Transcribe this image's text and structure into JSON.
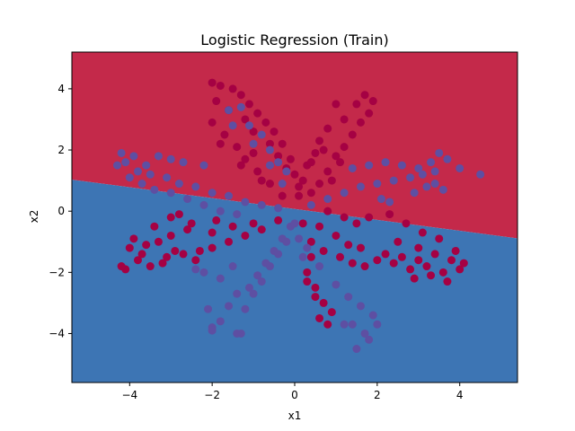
{
  "chart_data": {
    "type": "scatter",
    "title": "Logistic Regression (Train)",
    "xlabel": "x1",
    "ylabel": "x2",
    "xlim": [
      -5.4,
      5.4
    ],
    "ylim": [
      -5.6,
      5.2
    ],
    "xticks": [
      -4,
      -2,
      0,
      2,
      4
    ],
    "yticks": [
      -4,
      -2,
      0,
      2,
      4
    ],
    "xtick_labels": [
      "−4",
      "−2",
      "0",
      "2",
      "4"
    ],
    "ytick_labels": [
      "−4",
      "−2",
      "0",
      "2",
      "4"
    ],
    "grid": false,
    "legend": "none",
    "decision_boundary": {
      "line": [
        [
          -5.4,
          1.03
        ],
        [
          5.4,
          -0.89
        ]
      ],
      "above_color": "#c4294a",
      "below_color": "#3d75b4"
    },
    "series": [
      {
        "color": "#a50143",
        "points": [
          [
            -2.0,
            4.2
          ],
          [
            -1.8,
            4.1
          ],
          [
            -1.5,
            4.0
          ],
          [
            -1.3,
            3.8
          ],
          [
            -1.1,
            3.5
          ],
          [
            -0.9,
            3.2
          ],
          [
            -0.7,
            2.9
          ],
          [
            -0.5,
            2.6
          ],
          [
            -0.3,
            2.2
          ],
          [
            -0.1,
            1.7
          ],
          [
            0.0,
            1.2
          ],
          [
            0.1,
            0.8
          ],
          [
            -1.9,
            3.6
          ],
          [
            -1.6,
            3.3
          ],
          [
            -1.2,
            3.0
          ],
          [
            -1.0,
            2.6
          ],
          [
            -0.6,
            2.2
          ],
          [
            -0.4,
            1.8
          ],
          [
            -0.2,
            1.4
          ],
          [
            -2.0,
            2.9
          ],
          [
            -1.7,
            2.5
          ],
          [
            -1.4,
            2.1
          ],
          [
            -1.2,
            1.7
          ],
          [
            -0.9,
            1.3
          ],
          [
            -0.6,
            0.9
          ],
          [
            -0.3,
            0.5
          ],
          [
            -1.8,
            2.2
          ],
          [
            -1.3,
            1.5
          ],
          [
            -0.8,
            1.0
          ],
          [
            -1.0,
            1.9
          ],
          [
            1.0,
            3.5
          ],
          [
            1.2,
            3.0
          ],
          [
            0.8,
            2.7
          ],
          [
            0.6,
            2.3
          ],
          [
            0.5,
            1.9
          ],
          [
            0.3,
            1.5
          ],
          [
            0.2,
            1.0
          ],
          [
            0.1,
            0.5
          ],
          [
            0.7,
            2.0
          ],
          [
            0.4,
            1.6
          ],
          [
            1.7,
            3.8
          ],
          [
            1.5,
            3.5
          ],
          [
            1.9,
            3.6
          ],
          [
            1.8,
            3.2
          ],
          [
            1.6,
            2.9
          ],
          [
            1.4,
            2.5
          ],
          [
            1.2,
            2.1
          ],
          [
            1.0,
            1.8
          ],
          [
            0.8,
            1.3
          ],
          [
            0.6,
            0.9
          ],
          [
            0.4,
            0.6
          ],
          [
            1.1,
            1.6
          ],
          [
            0.9,
            1.0
          ],
          [
            -4.1,
            -1.9
          ],
          [
            -3.8,
            -1.6
          ],
          [
            -3.5,
            -1.8
          ],
          [
            -3.1,
            -1.5
          ],
          [
            -2.7,
            -1.4
          ],
          [
            -2.3,
            -1.3
          ],
          [
            -2.0,
            -1.2
          ],
          [
            -1.6,
            -1.0
          ],
          [
            -1.2,
            -0.8
          ],
          [
            -0.8,
            -0.6
          ],
          [
            -0.4,
            -0.3
          ],
          [
            -4.0,
            -1.2
          ],
          [
            -3.6,
            -1.1
          ],
          [
            -3.3,
            -1.0
          ],
          [
            -3.0,
            -0.8
          ],
          [
            -2.6,
            -0.6
          ],
          [
            -2.0,
            -0.7
          ],
          [
            -1.5,
            -0.5
          ],
          [
            -1.0,
            -0.4
          ],
          [
            -3.9,
            -0.9
          ],
          [
            -3.4,
            -0.5
          ],
          [
            -3.0,
            -0.2
          ],
          [
            -2.5,
            -0.4
          ],
          [
            -1.9,
            -0.3
          ],
          [
            -3.2,
            -1.7
          ],
          [
            -2.9,
            -1.3
          ],
          [
            -3.7,
            -1.4
          ],
          [
            -4.2,
            -1.8
          ],
          [
            -2.4,
            -1.6
          ],
          [
            -2.8,
            -0.1
          ],
          [
            0.4,
            -1.0
          ],
          [
            0.7,
            -1.3
          ],
          [
            1.1,
            -1.5
          ],
          [
            1.4,
            -1.7
          ],
          [
            1.7,
            -1.8
          ],
          [
            2.0,
            -1.6
          ],
          [
            2.4,
            -1.7
          ],
          [
            2.8,
            -1.9
          ],
          [
            3.2,
            -1.8
          ],
          [
            3.6,
            -2.0
          ],
          [
            4.0,
            -1.9
          ],
          [
            0.6,
            -0.5
          ],
          [
            1.0,
            -0.8
          ],
          [
            1.3,
            -1.1
          ],
          [
            1.6,
            -1.2
          ],
          [
            2.2,
            -1.4
          ],
          [
            2.6,
            -1.5
          ],
          [
            3.0,
            -1.6
          ],
          [
            3.4,
            -1.4
          ],
          [
            3.8,
            -1.6
          ],
          [
            4.1,
            -1.7
          ],
          [
            3.9,
            -1.3
          ],
          [
            2.3,
            -0.1
          ],
          [
            2.7,
            -0.4
          ],
          [
            3.1,
            -0.7
          ],
          [
            3.5,
            -0.9
          ],
          [
            3.0,
            -1.2
          ],
          [
            2.5,
            -1.0
          ],
          [
            1.8,
            -0.2
          ],
          [
            1.5,
            -0.4
          ],
          [
            1.2,
            -0.2
          ],
          [
            0.8,
            0.0
          ],
          [
            3.3,
            -2.1
          ],
          [
            3.7,
            -2.3
          ],
          [
            2.9,
            -2.2
          ],
          [
            0.2,
            -0.4
          ],
          [
            0.4,
            -1.5
          ],
          [
            0.3,
            -2.0
          ],
          [
            0.5,
            -2.5
          ],
          [
            0.7,
            -3.0
          ],
          [
            0.9,
            -3.3
          ],
          [
            0.6,
            -3.5
          ],
          [
            0.8,
            -3.7
          ],
          [
            0.5,
            -2.8
          ],
          [
            0.3,
            -2.3
          ]
        ]
      },
      {
        "color": "#5e4fa2",
        "points": [
          [
            -4.3,
            1.5
          ],
          [
            -4.2,
            1.9
          ],
          [
            -3.9,
            1.8
          ],
          [
            -3.6,
            1.5
          ],
          [
            -3.5,
            1.2
          ],
          [
            -3.1,
            1.1
          ],
          [
            -2.8,
            0.9
          ],
          [
            -2.4,
            0.8
          ],
          [
            -2.0,
            0.6
          ],
          [
            -1.6,
            0.5
          ],
          [
            -1.2,
            0.3
          ],
          [
            -0.8,
            0.2
          ],
          [
            -0.4,
            0.1
          ],
          [
            -4.0,
            1.1
          ],
          [
            -3.7,
            0.9
          ],
          [
            -3.4,
            0.7
          ],
          [
            -3.0,
            0.6
          ],
          [
            -2.6,
            0.4
          ],
          [
            -2.2,
            0.2
          ],
          [
            -1.8,
            0.0
          ],
          [
            -1.4,
            -0.1
          ],
          [
            -3.3,
            1.8
          ],
          [
            -3.0,
            1.7
          ],
          [
            -2.7,
            1.6
          ],
          [
            -2.2,
            1.5
          ],
          [
            -3.8,
            1.3
          ],
          [
            -4.1,
            1.6
          ],
          [
            -1.6,
            3.3
          ],
          [
            -1.3,
            3.4
          ],
          [
            -1.1,
            2.8
          ],
          [
            -0.8,
            2.5
          ],
          [
            -0.6,
            2.0
          ],
          [
            -0.4,
            1.6
          ],
          [
            -0.2,
            1.3
          ],
          [
            -1.5,
            2.8
          ],
          [
            -1.0,
            2.2
          ],
          [
            -0.6,
            1.5
          ],
          [
            -0.3,
            0.9
          ],
          [
            1.4,
            1.4
          ],
          [
            1.8,
            1.5
          ],
          [
            2.2,
            1.6
          ],
          [
            2.6,
            1.5
          ],
          [
            3.0,
            1.4
          ],
          [
            3.3,
            1.6
          ],
          [
            3.5,
            1.9
          ],
          [
            3.7,
            1.7
          ],
          [
            3.4,
            1.3
          ],
          [
            3.1,
            1.2
          ],
          [
            2.8,
            1.1
          ],
          [
            2.4,
            1.0
          ],
          [
            2.0,
            0.9
          ],
          [
            1.6,
            0.8
          ],
          [
            1.2,
            0.6
          ],
          [
            0.8,
            0.4
          ],
          [
            0.4,
            0.2
          ],
          [
            3.6,
            0.7
          ],
          [
            3.2,
            0.8
          ],
          [
            2.9,
            0.6
          ],
          [
            3.4,
            0.9
          ],
          [
            4.5,
            1.2
          ],
          [
            4.0,
            1.4
          ],
          [
            2.3,
            0.3
          ],
          [
            2.1,
            0.4
          ],
          [
            -2.1,
            -3.2
          ],
          [
            -2.0,
            -3.8
          ],
          [
            -1.8,
            -3.6
          ],
          [
            -1.6,
            -3.1
          ],
          [
            -1.4,
            -2.7
          ],
          [
            -1.1,
            -2.5
          ],
          [
            -0.9,
            -2.1
          ],
          [
            -0.7,
            -1.7
          ],
          [
            -0.5,
            -1.3
          ],
          [
            -0.3,
            -0.9
          ],
          [
            -0.1,
            -0.5
          ],
          [
            -1.2,
            -3.2
          ],
          [
            -1.0,
            -2.7
          ],
          [
            -0.8,
            -2.3
          ],
          [
            -0.6,
            -1.8
          ],
          [
            -0.4,
            -1.4
          ],
          [
            -0.2,
            -1.0
          ],
          [
            -2.2,
            -2.0
          ],
          [
            -1.8,
            -2.2
          ],
          [
            -1.5,
            -1.8
          ],
          [
            -2.4,
            -1.9
          ],
          [
            0.3,
            -1.2
          ],
          [
            0.6,
            -1.8
          ],
          [
            1.0,
            -2.4
          ],
          [
            1.3,
            -2.8
          ],
          [
            1.6,
            -3.1
          ],
          [
            1.9,
            -3.4
          ],
          [
            1.7,
            -4.0
          ],
          [
            1.4,
            -3.7
          ],
          [
            1.2,
            -3.7
          ],
          [
            1.8,
            -4.2
          ],
          [
            1.5,
            -4.5
          ],
          [
            2.0,
            -3.7
          ],
          [
            0.0,
            -0.4
          ],
          [
            0.1,
            -0.9
          ],
          [
            0.2,
            -1.5
          ],
          [
            -1.3,
            -4.0
          ],
          [
            -1.4,
            -4.0
          ],
          [
            -2.0,
            -3.9
          ]
        ]
      }
    ]
  }
}
